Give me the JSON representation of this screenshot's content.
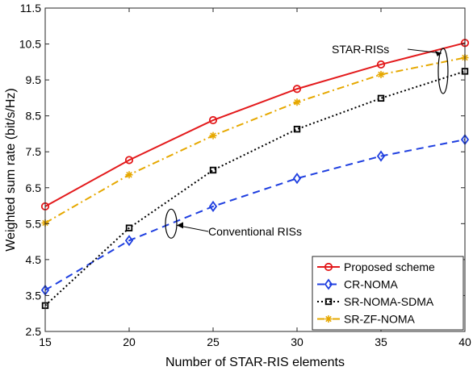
{
  "chart_data": {
    "type": "line",
    "xlabel": "Number of STAR-RIS elements",
    "ylabel": "Weighted sum rate (bit/s/Hz)",
    "xlim": [
      15,
      40
    ],
    "ylim": [
      2.5,
      11.5
    ],
    "x_ticks": [
      15,
      20,
      25,
      30,
      35,
      40
    ],
    "y_ticks": [
      2.5,
      3.5,
      4.5,
      5.5,
      6.5,
      7.5,
      8.5,
      9.5,
      10.5,
      11.5
    ],
    "x_tick_labels": [
      "15",
      "20",
      "25",
      "30",
      "35",
      "40"
    ],
    "y_tick_labels": [
      "2.5",
      "3.5",
      "4.5",
      "5.5",
      "6.5",
      "7.5",
      "8.5",
      "9.5",
      "10.5",
      "11.5"
    ],
    "x": [
      15,
      20,
      25,
      30,
      35,
      40
    ],
    "grid": false,
    "legend_position": "bottom-right",
    "series": [
      {
        "name": "Proposed scheme",
        "values": [
          5.98,
          7.27,
          8.38,
          9.25,
          9.93,
          10.53
        ],
        "color": "#e31a1c",
        "dash": "solid",
        "marker": "circle"
      },
      {
        "name": "CR-NOMA",
        "values": [
          3.65,
          5.03,
          5.98,
          6.76,
          7.38,
          7.84
        ],
        "color": "#1f3fe0",
        "dash": "dashed",
        "marker": "diamond"
      },
      {
        "name": "SR-NOMA-SDMA",
        "values": [
          3.22,
          5.38,
          6.99,
          8.13,
          8.99,
          9.74
        ],
        "color": "#000000",
        "dash": "dotted",
        "marker": "square"
      },
      {
        "name": "SR-ZF-NOMA",
        "values": [
          5.52,
          6.86,
          7.95,
          8.88,
          9.65,
          10.12
        ],
        "color": "#e6a800",
        "dash": "dashdot",
        "marker": "star"
      }
    ],
    "annotations": [
      {
        "text": "STAR-RISs"
      },
      {
        "text": "Conventional RISs"
      }
    ]
  }
}
